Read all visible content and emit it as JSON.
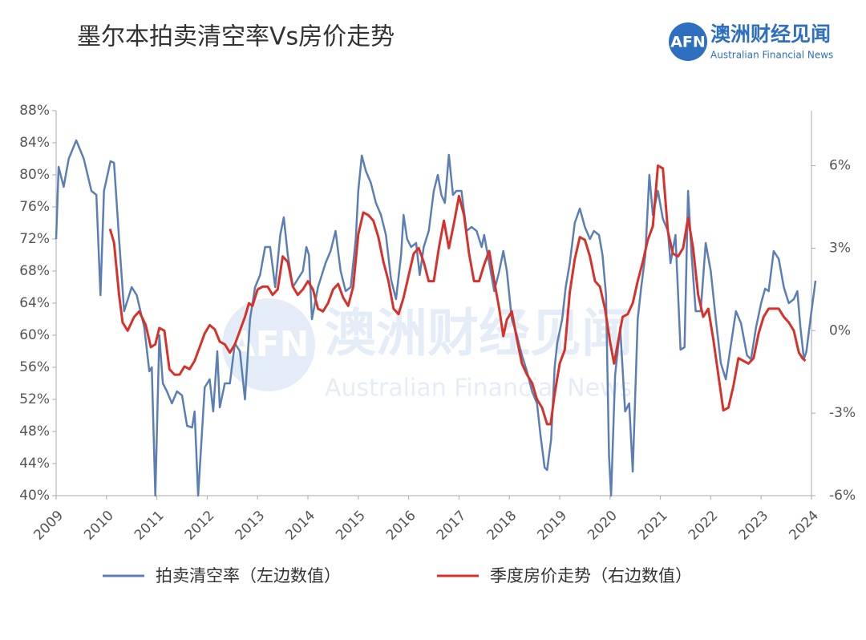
{
  "logo": {
    "mark": "AFN",
    "name": "澳洲财经见闻",
    "name_en": "Australian Financial News"
  },
  "chart_data": {
    "type": "line",
    "title": "墨尔本拍卖清空率Vs房价走势",
    "xlim": [
      2009,
      2024
    ],
    "xticks": [
      2009,
      2010,
      2011,
      2012,
      2013,
      2014,
      2015,
      2016,
      2017,
      2018,
      2019,
      2020,
      2021,
      2022,
      2023,
      2024
    ],
    "ylim": [
      40,
      88
    ],
    "yticks": [
      {
        "value": 40,
        "label": "40%"
      },
      {
        "value": 44,
        "label": "44%"
      },
      {
        "value": 48,
        "label": "48%"
      },
      {
        "value": 52,
        "label": "52%"
      },
      {
        "value": 56,
        "label": "56%"
      },
      {
        "value": 60,
        "label": "60%"
      },
      {
        "value": 64,
        "label": "64%"
      },
      {
        "value": 68,
        "label": "68%"
      },
      {
        "value": 72,
        "label": "72%"
      },
      {
        "value": 76,
        "label": "76%"
      },
      {
        "value": 80,
        "label": "80%"
      },
      {
        "value": 84,
        "label": "84%"
      },
      {
        "value": 88,
        "label": "88%"
      }
    ],
    "y2lim": [
      -6,
      8
    ],
    "y2ticks": [
      {
        "value": -6,
        "label": "-6%"
      },
      {
        "value": -3,
        "label": "-3%"
      },
      {
        "value": 0,
        "label": "0%"
      },
      {
        "value": 3,
        "label": "3%"
      },
      {
        "value": 6,
        "label": "6%"
      }
    ],
    "grid": false,
    "series": [
      {
        "name": "拍卖清空率（左边数值）",
        "color": "#5b7fb5",
        "x": [
          2009.0,
          2009.05,
          2009.15,
          2009.25,
          2009.4,
          2009.55,
          2009.7,
          2009.8,
          2009.88,
          2009.95,
          2010.08,
          2010.15,
          2010.25,
          2010.35,
          2010.5,
          2010.6,
          2010.75,
          2010.85,
          2010.9,
          2010.97,
          2011.05,
          2011.12,
          2011.2,
          2011.3,
          2011.4,
          2011.5,
          2011.6,
          2011.7,
          2011.75,
          2011.82,
          2011.95,
          2012.05,
          2012.12,
          2012.2,
          2012.25,
          2012.35,
          2012.45,
          2012.55,
          2012.65,
          2012.75,
          2012.85,
          2012.95,
          2013.05,
          2013.15,
          2013.25,
          2013.35,
          2013.45,
          2013.52,
          2013.6,
          2013.7,
          2013.8,
          2013.9,
          2013.97,
          2014.02,
          2014.08,
          2014.2,
          2014.35,
          2014.45,
          2014.55,
          2014.65,
          2014.75,
          2014.85,
          2014.95,
          2015.0,
          2015.07,
          2015.15,
          2015.25,
          2015.35,
          2015.45,
          2015.55,
          2015.65,
          2015.75,
          2015.85,
          2015.9,
          2015.97,
          2016.05,
          2016.15,
          2016.22,
          2016.3,
          2016.4,
          2016.5,
          2016.58,
          2016.65,
          2016.72,
          2016.8,
          2016.88,
          2016.95,
          2017.05,
          2017.15,
          2017.25,
          2017.35,
          2017.45,
          2017.5,
          2017.6,
          2017.7,
          2017.8,
          2017.88,
          2017.95,
          2018.05,
          2018.15,
          2018.25,
          2018.35,
          2018.45,
          2018.55,
          2018.62,
          2018.7,
          2018.75,
          2018.83,
          2018.9,
          2018.95,
          2019.05,
          2019.12,
          2019.2,
          2019.3,
          2019.4,
          2019.5,
          2019.6,
          2019.68,
          2019.78,
          2019.85,
          2019.92,
          2019.98,
          2020.02,
          2020.1,
          2020.2,
          2020.3,
          2020.38,
          2020.45,
          2020.55,
          2020.62,
          2020.7,
          2020.78,
          2020.85,
          2020.95,
          2021.05,
          2021.15,
          2021.2,
          2021.3,
          2021.4,
          2021.48,
          2021.55,
          2021.62,
          2021.7,
          2021.8,
          2021.9,
          2022.0,
          2022.1,
          2022.2,
          2022.3,
          2022.38,
          2022.5,
          2022.6,
          2022.72,
          2022.8,
          2022.9,
          2023.0,
          2023.08,
          2023.15,
          2023.25,
          2023.35,
          2023.45,
          2023.55,
          2023.65,
          2023.72,
          2023.78,
          2023.85,
          2023.9,
          2024.0,
          2024.08
        ],
        "values": [
          72,
          81,
          78.5,
          82,
          84.3,
          82,
          78,
          77.5,
          65,
          78,
          81.7,
          81.5,
          72,
          63,
          66,
          65,
          61,
          55.5,
          56,
          40,
          60,
          54,
          53,
          51.5,
          53,
          52.5,
          48.7,
          48.5,
          50.5,
          40,
          53.5,
          54.5,
          50.5,
          58,
          51,
          54,
          54,
          59,
          58,
          52,
          62,
          66,
          67.5,
          71,
          71,
          66,
          72.5,
          74.7,
          70,
          66,
          67,
          68,
          71,
          70,
          62,
          66,
          69,
          70.5,
          73,
          68,
          65.5,
          66,
          72,
          78,
          82.4,
          80.5,
          79,
          76.5,
          75,
          72.5,
          67,
          64.5,
          70,
          75,
          72,
          71,
          71.5,
          67.5,
          71,
          73,
          78,
          80,
          77.5,
          76.5,
          82.5,
          77.5,
          78,
          78,
          73,
          73.5,
          73,
          71,
          72.5,
          69,
          65.5,
          68,
          70.5,
          68,
          62,
          60,
          57.5,
          55.5,
          53,
          51.5,
          47.5,
          43.5,
          43.2,
          47,
          56,
          59,
          62,
          66,
          69,
          74,
          75.8,
          73.5,
          72,
          73,
          72.5,
          70,
          65,
          45,
          40,
          55,
          61,
          50.5,
          51.5,
          43,
          62,
          66,
          70,
          80,
          75,
          78,
          74.5,
          73,
          69,
          72.5,
          58.2,
          58.5,
          78,
          70,
          63,
          63,
          71.5,
          68,
          62,
          56.5,
          54.5,
          58,
          63,
          61.5,
          57.5,
          57,
          61,
          64,
          65.8,
          65.5,
          70.5,
          69.5,
          66,
          64,
          64.5,
          65.5,
          61,
          57,
          58,
          63,
          66.8
        ]
      },
      {
        "name": "季度房价走势（右边数值）",
        "color": "#d7322a",
        "axis": "y2",
        "x": [
          2010.07,
          2010.15,
          2010.25,
          2010.32,
          2010.42,
          2010.55,
          2010.65,
          2010.78,
          2010.88,
          2010.97,
          2011.05,
          2011.15,
          2011.25,
          2011.35,
          2011.45,
          2011.55,
          2011.65,
          2011.75,
          2011.85,
          2011.95,
          2012.05,
          2012.15,
          2012.25,
          2012.35,
          2012.45,
          2012.55,
          2012.65,
          2012.75,
          2012.83,
          2012.9,
          2013.0,
          2013.1,
          2013.2,
          2013.3,
          2013.4,
          2013.5,
          2013.6,
          2013.7,
          2013.8,
          2013.9,
          2014.0,
          2014.1,
          2014.2,
          2014.3,
          2014.4,
          2014.5,
          2014.6,
          2014.7,
          2014.8,
          2014.9,
          2015.0,
          2015.1,
          2015.2,
          2015.3,
          2015.4,
          2015.5,
          2015.6,
          2015.7,
          2015.8,
          2015.9,
          2016.0,
          2016.1,
          2016.2,
          2016.3,
          2016.4,
          2016.5,
          2016.6,
          2016.7,
          2016.8,
          2016.9,
          2017.0,
          2017.1,
          2017.2,
          2017.3,
          2017.4,
          2017.5,
          2017.6,
          2017.7,
          2017.8,
          2017.88,
          2017.95,
          2018.05,
          2018.15,
          2018.25,
          2018.35,
          2018.45,
          2018.55,
          2018.65,
          2018.75,
          2018.82,
          2018.9,
          2019.0,
          2019.1,
          2019.2,
          2019.3,
          2019.4,
          2019.5,
          2019.6,
          2019.7,
          2019.8,
          2019.9,
          2020.0,
          2020.08,
          2020.15,
          2020.25,
          2020.35,
          2020.45,
          2020.55,
          2020.65,
          2020.75,
          2020.85,
          2020.95,
          2021.05,
          2021.15,
          2021.25,
          2021.35,
          2021.45,
          2021.55,
          2021.65,
          2021.75,
          2021.85,
          2021.95,
          2022.05,
          2022.15,
          2022.25,
          2022.35,
          2022.45,
          2022.55,
          2022.65,
          2022.75,
          2022.85,
          2022.95,
          2023.05,
          2023.15,
          2023.25,
          2023.35,
          2023.45,
          2023.55,
          2023.65,
          2023.75,
          2023.82,
          2023.88
        ],
        "values": [
          3.7,
          3.2,
          1.3,
          0.3,
          0.0,
          0.5,
          0.7,
          0.2,
          -0.6,
          -0.5,
          0.1,
          0.0,
          -1.4,
          -1.6,
          -1.6,
          -1.3,
          -1.4,
          -1.1,
          -0.6,
          -0.1,
          0.2,
          0.05,
          -0.4,
          -0.5,
          -0.8,
          -0.5,
          0.0,
          0.5,
          1.0,
          0.9,
          1.5,
          1.6,
          1.6,
          1.3,
          1.5,
          2.7,
          2.5,
          1.6,
          1.3,
          1.5,
          1.8,
          1.5,
          0.8,
          0.7,
          1.0,
          1.5,
          1.7,
          1.2,
          0.9,
          1.6,
          3.5,
          4.3,
          4.2,
          4.0,
          3.4,
          2.5,
          1.8,
          0.8,
          0.6,
          1.2,
          2.0,
          2.8,
          3.0,
          2.5,
          1.8,
          1.8,
          3.0,
          4.0,
          3.0,
          3.9,
          4.9,
          4.2,
          2.8,
          1.8,
          1.8,
          2.4,
          2.9,
          1.8,
          0.8,
          -0.2,
          0.4,
          0.7,
          -0.3,
          -1.2,
          -1.6,
          -1.9,
          -2.5,
          -2.8,
          -3.4,
          -3.4,
          -2.3,
          -1.2,
          -0.7,
          1.4,
          2.6,
          3.4,
          3.3,
          2.7,
          1.8,
          1.6,
          0.8,
          -0.4,
          -1.2,
          -0.5,
          0.5,
          0.6,
          1.0,
          1.8,
          2.5,
          3.3,
          3.8,
          6.0,
          5.9,
          3.6,
          2.8,
          2.7,
          3.0,
          4.1,
          3.0,
          1.3,
          0.5,
          0.8,
          -0.3,
          -1.6,
          -2.9,
          -2.8,
          -2.0,
          -1.0,
          -1.1,
          -1.2,
          -1.0,
          -0.1,
          0.5,
          0.8,
          0.8,
          0.8,
          0.5,
          0.3,
          0.0,
          -0.8,
          -1.0,
          -1.1
        ]
      }
    ]
  }
}
